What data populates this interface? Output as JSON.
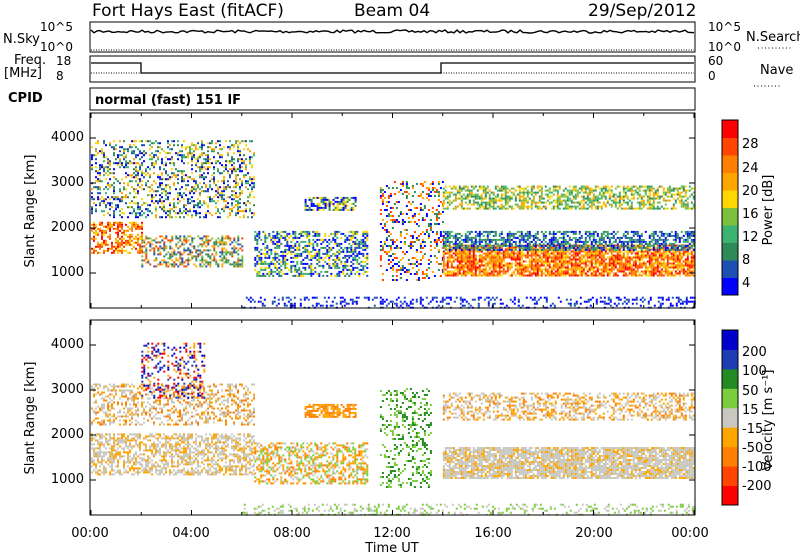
{
  "header": {
    "station": "Fort Hays East (fitACF)",
    "beam": "Beam 04",
    "date": "29/Sep/2012"
  },
  "strips": {
    "nsky_label": "N.Sky",
    "nsky_ticks": [
      "10^5",
      "10^0"
    ],
    "nsearch_label": "N.Search",
    "nsearch_ticks": [
      "10^5",
      "10^0"
    ],
    "freq_label": "Freq.",
    "freq_unit": "[MHz]",
    "freq_ticks": [
      "18",
      "8"
    ],
    "nave_label": "Nave",
    "nave_ticks": [
      "60",
      "0"
    ],
    "cpid_label": "CPID",
    "cpid_text": "normal (fast) 151 IF"
  },
  "chart_data": [
    {
      "type": "heatmap",
      "name": "power",
      "ylabel": "Slant Range [km]",
      "ylim": [
        200,
        4500
      ],
      "yticks": [
        "4000",
        "3000",
        "2000",
        "1000"
      ],
      "xlim": [
        0,
        24
      ],
      "colorbar_label": "Power [dB]",
      "colorbar_ticks": [
        "28",
        "24",
        "20",
        "16",
        "12",
        "8",
        "4"
      ],
      "colors": [
        "#0000ff",
        "#1e50b4",
        "#2e8b57",
        "#3cb371",
        "#7fbf3f",
        "#ffd700",
        "#ffa500",
        "#ff7f00",
        "#ff4500",
        "#ff0000"
      ]
    },
    {
      "type": "heatmap",
      "name": "velocity",
      "ylabel": "Slant Range [km]",
      "ylim": [
        200,
        4500
      ],
      "yticks": [
        "4000",
        "3000",
        "2000",
        "1000"
      ],
      "xlim": [
        0,
        24
      ],
      "xlabel": "Time UT",
      "xticks": [
        "00:00",
        "04:00",
        "08:00",
        "12:00",
        "16:00",
        "20:00",
        "00:00"
      ],
      "colorbar_label": "Velocity [m s⁻¹]",
      "colorbar_ticks": [
        "200",
        "100",
        "50",
        "15",
        "-15",
        "-50",
        "-100",
        "-200"
      ],
      "colors": [
        "#0000cd",
        "#1e3cb4",
        "#228b22",
        "#7ccd3c",
        "#c8c8c0",
        "#ffa500",
        "#ff7f00",
        "#ff4500",
        "#ff0000"
      ]
    }
  ]
}
